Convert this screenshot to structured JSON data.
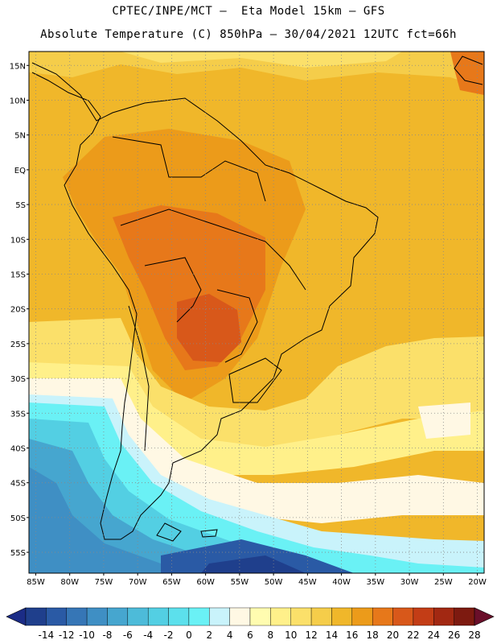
{
  "header": {
    "line1": "CPTEC/INPE/MCT –  Eta Model 15km – GFS",
    "line2": "Absolute Temperature (C) 850hPa – 30/04/2021 12UTC fct=66h"
  },
  "map": {
    "lat_labels": [
      "15N",
      "10N",
      "5N",
      "EQ",
      "5S",
      "10S",
      "15S",
      "20S",
      "25S",
      "30S",
      "35S",
      "40S",
      "45S",
      "50S",
      "55S"
    ],
    "lon_labels": [
      "85W",
      "80W",
      "75W",
      "70W",
      "65W",
      "60W",
      "55W",
      "50W",
      "45W",
      "40W",
      "35W",
      "30W",
      "25W",
      "20W"
    ],
    "lat_range": [
      17,
      -58
    ],
    "lon_range": [
      -86,
      -19
    ],
    "field": "Absolute Temperature (C) 850hPa"
  },
  "colorbar": {
    "ticks": [
      "-14",
      "-12",
      "-10",
      "-8",
      "-6",
      "-4",
      "-2",
      "0",
      "2",
      "4",
      "6",
      "8",
      "10",
      "12",
      "14",
      "16",
      "18",
      "20",
      "22",
      "24",
      "26",
      "28"
    ],
    "colors": [
      "#1f3f8c",
      "#2a5aa5",
      "#3676b6",
      "#3f8fc4",
      "#46a6cf",
      "#4dbbd9",
      "#53cfe3",
      "#5ce0ec",
      "#6af1f5",
      "#c9f3fb",
      "#fff8e4",
      "#fffcb0",
      "#fff08a",
      "#fbe06a",
      "#f5cd4a",
      "#f0b72a",
      "#ec9b1a",
      "#e7781a",
      "#d8581a",
      "#c33d16",
      "#a22812",
      "#7d1a10"
    ],
    "under_color": "#1b2c86",
    "over_color": "#6a0f2a"
  }
}
